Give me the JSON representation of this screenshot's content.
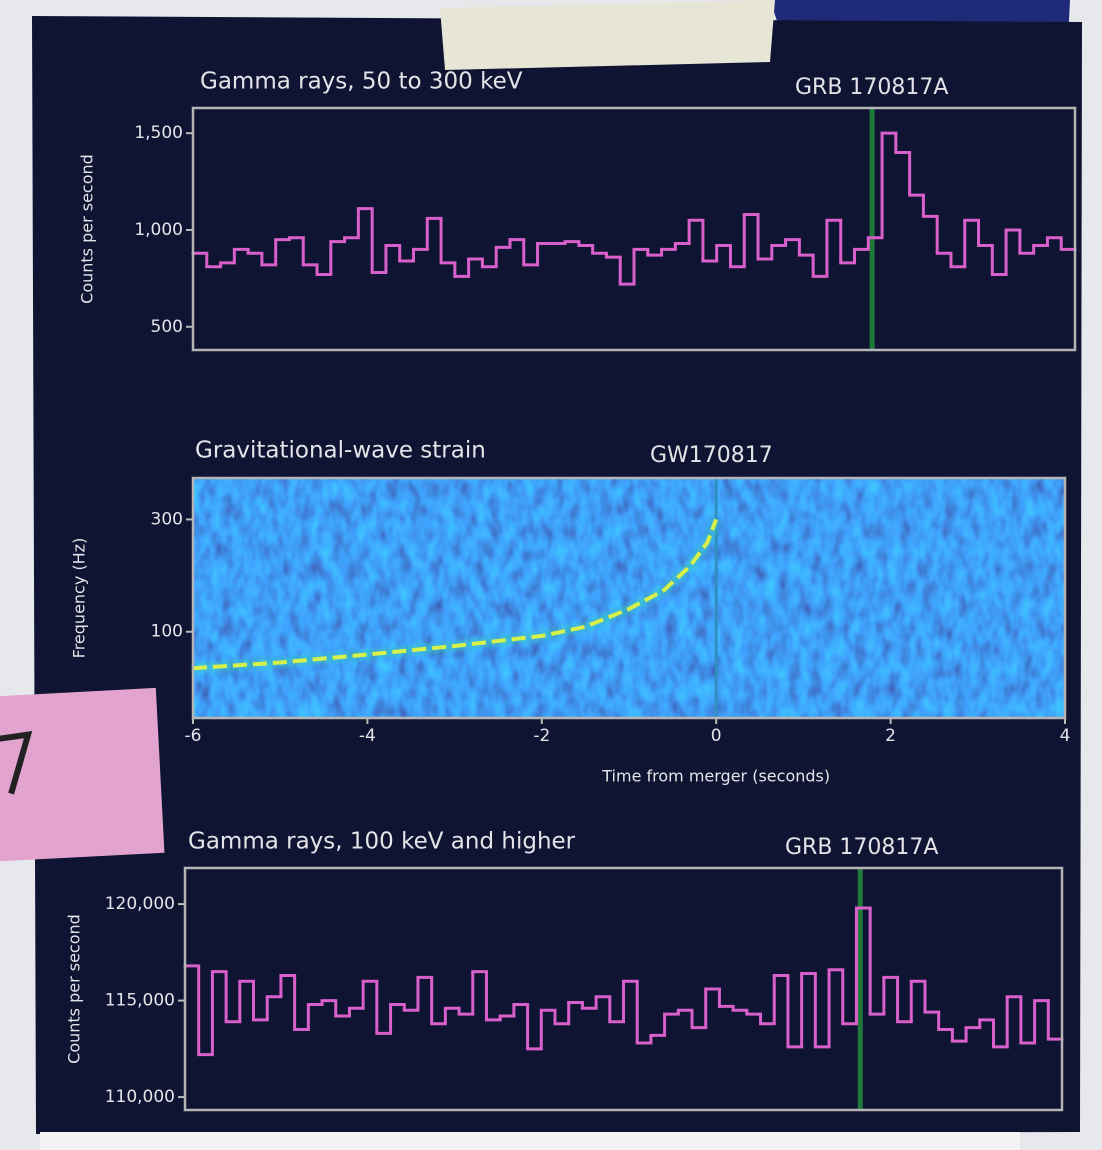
{
  "chart_data": [
    {
      "type": "step",
      "title": "Gamma rays, 50 to 300 keV",
      "annotation": "GRB 170817A",
      "y_label": "Counts per second",
      "color": "#d95fca",
      "xlim": [
        -6,
        4
      ],
      "ylim": [
        380,
        1630
      ],
      "yticks": [
        {
          "value": 500,
          "label": "500"
        },
        {
          "value": 1000,
          "label": "1,000"
        },
        {
          "value": 1500,
          "label": "1,500"
        }
      ],
      "vline": {
        "x": 1.7,
        "color": "#1f7a3a"
      },
      "values": [
        880,
        810,
        830,
        900,
        880,
        820,
        950,
        960,
        820,
        770,
        940,
        960,
        1110,
        780,
        920,
        840,
        900,
        1060,
        830,
        760,
        850,
        810,
        910,
        950,
        820,
        930,
        930,
        940,
        920,
        880,
        860,
        720,
        900,
        870,
        900,
        930,
        1050,
        840,
        920,
        810,
        1080,
        850,
        920,
        950,
        870,
        760,
        1050,
        830,
        900,
        960,
        1500,
        1400,
        1180,
        1070,
        880,
        810,
        1050,
        920,
        770,
        1000,
        880,
        920,
        960,
        900
      ]
    },
    {
      "type": "spectrogram",
      "title": "Gravitational-wave strain",
      "annotation": "GW170817",
      "y_label": "Frequency (Hz)",
      "x_label": "Time from merger (seconds)",
      "color": "#d8f04a",
      "yscale": "log",
      "xlim": [
        -6,
        4
      ],
      "ylim": [
        43,
        450
      ],
      "xticks": [
        -6,
        -4,
        -2,
        0,
        2,
        4
      ],
      "yticks": [
        100,
        300
      ],
      "vline": {
        "x": 0,
        "color": "#2f8fc0"
      },
      "x": [
        -6,
        -5,
        -4,
        -3,
        -2,
        -1.5,
        -1,
        -0.6,
        -0.3,
        -0.1,
        0
      ],
      "values": [
        70,
        74,
        80,
        87,
        96,
        105,
        125,
        150,
        190,
        240,
        300
      ]
    },
    {
      "type": "step",
      "title": "Gamma rays, 100 keV and higher",
      "annotation": "GRB 170817A",
      "y_label": "Counts per second",
      "color": "#d95fca",
      "xlim": [
        -6,
        4
      ],
      "ylim": [
        109330,
        121870
      ],
      "yticks": [
        {
          "value": 110000,
          "label": "110,000"
        },
        {
          "value": 115000,
          "label": "115,000"
        },
        {
          "value": 120000,
          "label": "120,000"
        }
      ],
      "vline": {
        "x": 1.7,
        "color": "#1f7a3a"
      },
      "values": [
        116800,
        112200,
        116500,
        113900,
        116000,
        114000,
        115200,
        116300,
        113500,
        114800,
        115000,
        114200,
        114600,
        116000,
        113300,
        114800,
        114500,
        116200,
        113800,
        114600,
        114300,
        116500,
        114000,
        114200,
        114800,
        112500,
        114500,
        113800,
        114900,
        114600,
        115200,
        113900,
        116000,
        112800,
        113200,
        114300,
        114500,
        113600,
        115600,
        114700,
        114500,
        114300,
        113800,
        116300,
        112600,
        116400,
        112600,
        116600,
        113800,
        119800,
        114300,
        116200,
        113900,
        116000,
        114400,
        113500,
        112900,
        113600,
        114000,
        112600,
        115200,
        112800,
        115000,
        113000
      ]
    }
  ]
}
